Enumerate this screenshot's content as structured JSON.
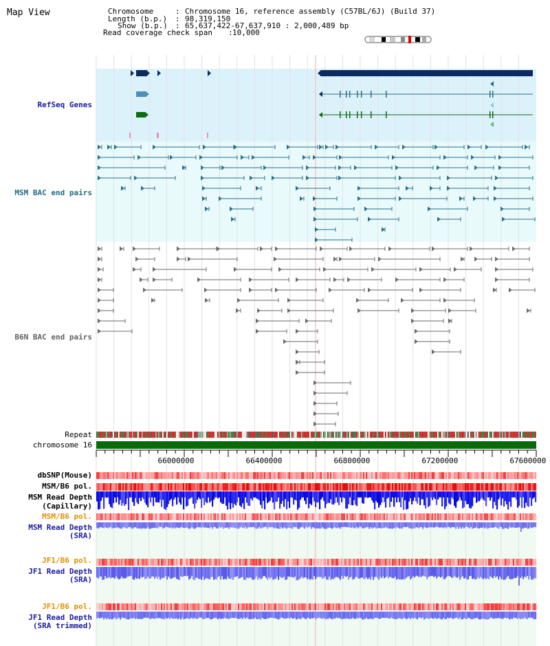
{
  "title": "Map View",
  "info": {
    "chromosome_key": "Chromosome",
    "chromosome_val": "Chromosome 16, reference assembly (C57BL/6J) (Build 37)",
    "length_key": "Length (b.p.)",
    "length_val": "98,319,150",
    "show_key": "Show (b.p.)",
    "show_val": "65,637,422-67,637,910 : 2,000,489 bp",
    "span_key": "Read coverage check span",
    "span_val": "10,000"
  },
  "tracks": {
    "refseq": "RefSeq Genes",
    "msm_bac": "MSM BAC end pairs",
    "b6n_bac": "B6N BAC end pairs",
    "repeat": "Repeat",
    "chromosome": "chromosome 16",
    "dbsnp": "dbSNP(Mouse)",
    "msm_b6_pol_1": "MSM/B6 pol.",
    "msm_depth_cap_1": "MSM Read Depth",
    "msm_depth_cap_2": "(Capillary)",
    "msm_b6_pol_2": "MSM/B6 pol.",
    "msm_depth_sra_1": "MSM Read Depth",
    "msm_depth_sra_2": "(SRA)",
    "jf1_b6_pol_1": "JF1/B6 pol.",
    "jf1_depth_sra_1": "JF1 Read Depth",
    "jf1_depth_sra_2": "(SRA)",
    "jf1_b6_pol_2": "JF1/B6 pol.",
    "jf1_depth_trim_1": "JF1 Read Depth",
    "jf1_depth_trim_2": "(SRA trimmed)"
  },
  "axis": {
    "ticks": [
      "66000000",
      "66400000",
      "66800000",
      "67200000",
      "67600000"
    ],
    "tick_values": [
      66000000,
      66400000,
      66800000,
      67200000,
      67600000
    ],
    "range": [
      65637422,
      67637910
    ]
  },
  "colors": {
    "refseq_bg": "#dcf2fb",
    "msm_bg": "#e9fafc",
    "msm_feature": "#2a6f86",
    "b6n_feature": "#6a6a6a",
    "refseq_dark": "#0a2a60",
    "refseq_mid": "#4a8fb8",
    "refseq_green": "#0f6a10",
    "label_blue": "#1a1aa0",
    "label_teal": "#1f6a80",
    "label_gray": "#606060",
    "label_orange": "#e09000",
    "chromosome_bar": "#0a6a0a",
    "depth_blue": "#1010e0",
    "depth_light": "#8080f0"
  },
  "icons": {
    "ideogram": "chromosome-ideogram-icon"
  }
}
